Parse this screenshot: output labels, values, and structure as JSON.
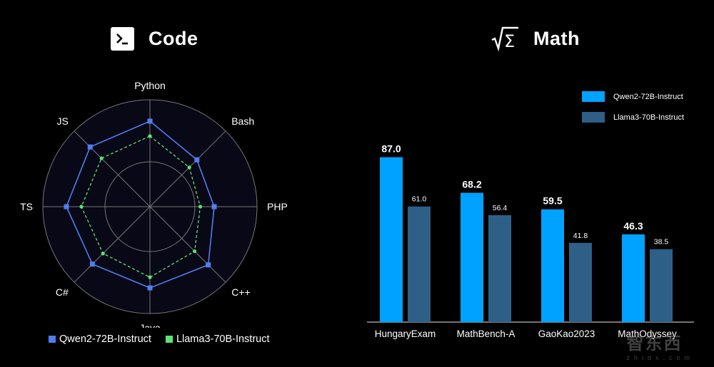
{
  "code_panel": {
    "title": "Code",
    "icon": "terminal-icon"
  },
  "math_panel": {
    "title": "Math",
    "icon": "sqrt-sigma-icon"
  },
  "colors": {
    "qwen": "#4f7ef0",
    "llama": "#5be37a",
    "qwen_bar": "#00a2ff",
    "llama_bar": "#2e5f86",
    "grid": "#777777"
  },
  "watermark": {
    "main": "智东西",
    "sub": "zhidx.com"
  },
  "chart_data": [
    {
      "type": "radar",
      "axes": [
        "Python",
        "Bash",
        "PHP",
        "C++",
        "Java",
        "C#",
        "TS",
        "JS"
      ],
      "series": [
        {
          "name": "Qwen2-72B-Instruct",
          "values": [
            0.8,
            0.62,
            0.6,
            0.77,
            0.76,
            0.76,
            0.78,
            0.79
          ]
        },
        {
          "name": "Llama3-70B-Instruct",
          "values": [
            0.66,
            0.52,
            0.47,
            0.59,
            0.66,
            0.62,
            0.64,
            0.64
          ]
        }
      ],
      "legend": "bottom"
    },
    {
      "type": "bar",
      "categories": [
        "HungaryExam",
        "MathBench-A",
        "GaoKao2023",
        "MathOdyssey"
      ],
      "series": [
        {
          "name": "Qwen2-72B-Instruct",
          "values": [
            87.0,
            68.2,
            59.5,
            46.3
          ]
        },
        {
          "name": "Llama3-70B-Instruct",
          "values": [
            61.0,
            56.4,
            41.8,
            38.5
          ]
        }
      ],
      "ylim": [
        0,
        100
      ],
      "legend": "top-right"
    }
  ]
}
